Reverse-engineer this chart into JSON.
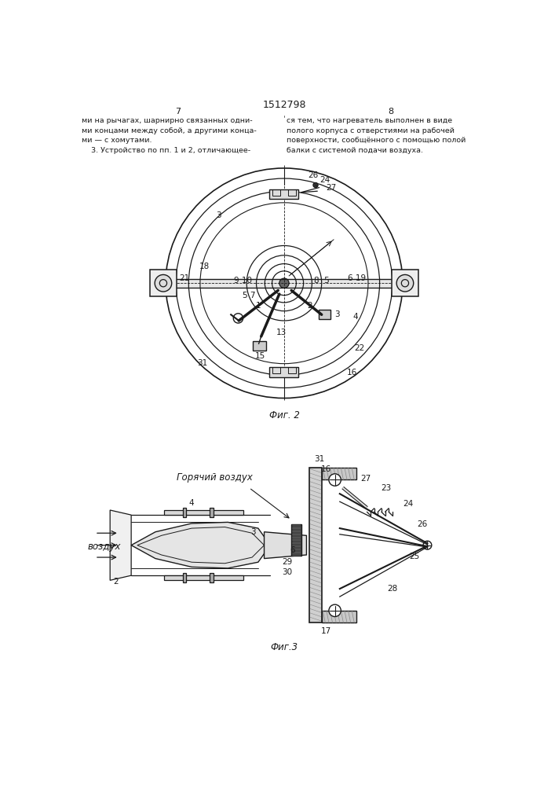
{
  "title": "1512798",
  "page_left": "7",
  "page_right": "8",
  "text_left": "ми на рычагах, шарнирно связанных одни-\nми концами между собой, а другими конца-\nми — с хомутами.\n    3. Устройство по пп. 1 и 2, отличающее-",
  "text_right": "ся тем, что нагреватель выполнен в виде\nполого корпуса с отверстиями на рабочей\nповерхности, сообщённого с помощью полой\nбалки с системой подачи воздуха.",
  "fig2_caption": "Фиг. 2",
  "fig3_caption": "Фиг.3",
  "fig3_label_hot": "Горячий воздух",
  "fig3_label_air": "воздух",
  "bg_color": "#ffffff",
  "line_color": "#1a1a1a"
}
